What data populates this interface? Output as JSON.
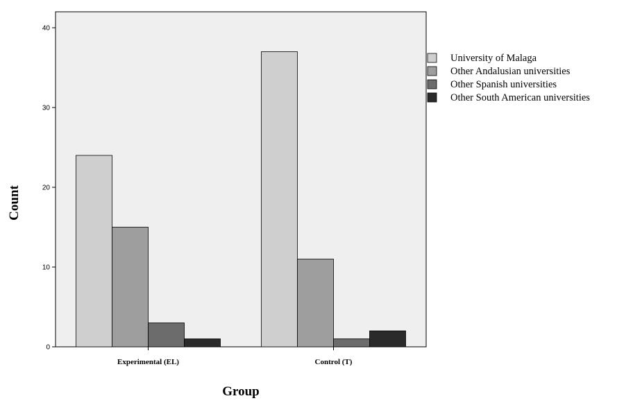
{
  "chart_data": {
    "type": "bar",
    "xlabel": "Group",
    "ylabel": "Count",
    "ylim": [
      0,
      42
    ],
    "yticks": [
      0,
      10,
      20,
      30,
      40
    ],
    "grid": false,
    "legend_position": "right",
    "categories": [
      "Experimental (EL)",
      "Control (T)"
    ],
    "series": [
      {
        "name": "University of Malaga",
        "values": [
          24,
          37
        ],
        "color": "#cfcfcf"
      },
      {
        "name": "Other Andalusian universities",
        "values": [
          15,
          11
        ],
        "color": "#9e9e9e"
      },
      {
        "name": "Other Spanish universities",
        "values": [
          3,
          1
        ],
        "color": "#6c6c6c"
      },
      {
        "name": "Other South American universities",
        "values": [
          1,
          2
        ],
        "color": "#2a2a2a"
      }
    ],
    "plot_background": "#efefef"
  }
}
